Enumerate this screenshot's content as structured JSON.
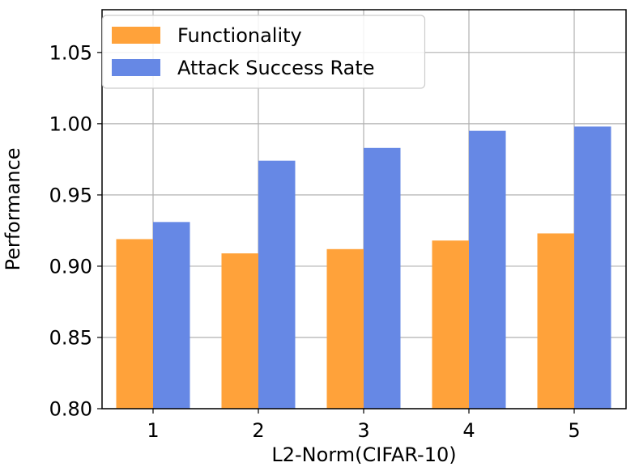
{
  "chart_data": {
    "type": "bar",
    "categories": [
      "1",
      "2",
      "3",
      "4",
      "5"
    ],
    "series": [
      {
        "name": "Functionality",
        "color": "#FFA23A",
        "values": [
          0.919,
          0.909,
          0.912,
          0.918,
          0.923
        ]
      },
      {
        "name": "Attack Success Rate",
        "color": "#6688E5",
        "values": [
          0.931,
          0.974,
          0.983,
          0.995,
          0.998
        ]
      }
    ],
    "xlabel": "L2-Norm(CIFAR-10)",
    "ylabel": "Performance",
    "ylim": [
      0.8,
      1.08
    ],
    "yticks": [
      "0.80",
      "0.85",
      "0.90",
      "0.95",
      "1.00",
      "1.05"
    ],
    "grid": true,
    "legend_position": "top-left"
  }
}
